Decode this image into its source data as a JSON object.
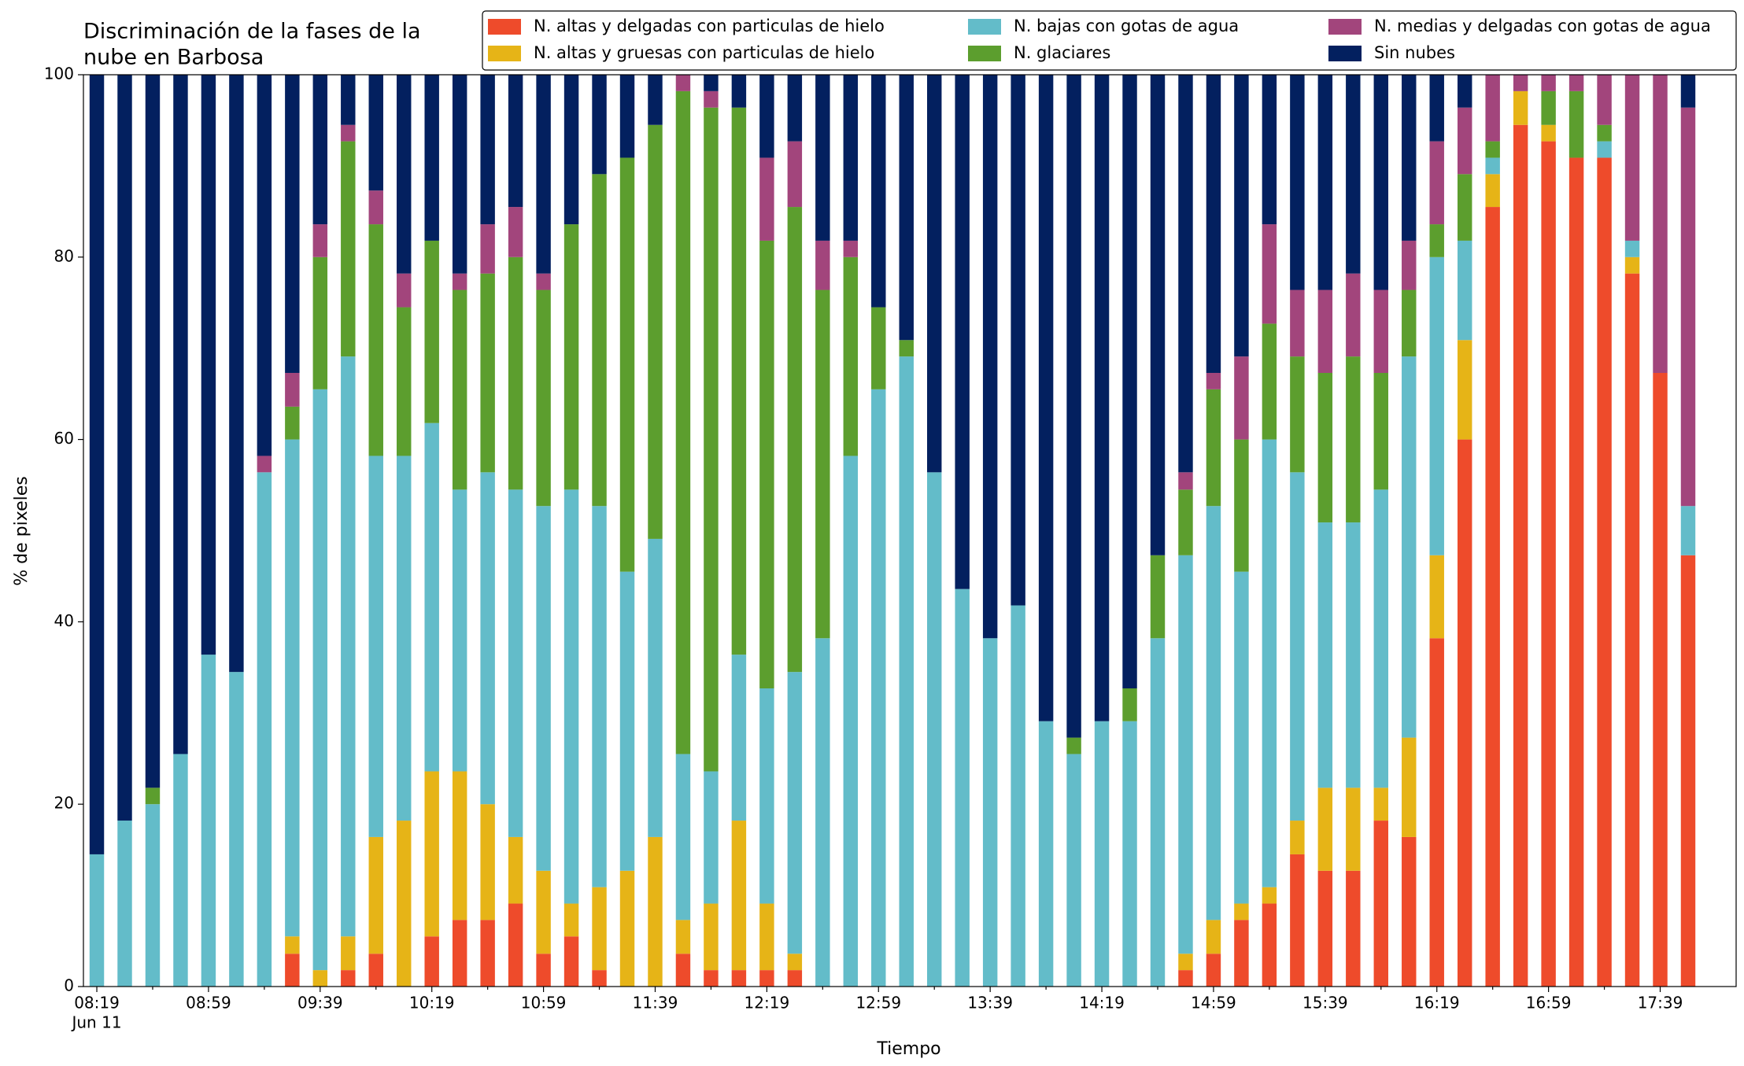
{
  "chart_data": {
    "type": "stacked_bar",
    "title": [
      "Discriminación de la fases de la",
      "nube en Barbosa"
    ],
    "x_label": "Tiempo",
    "y_label": "% de pixeles",
    "date_label": "Jun 11",
    "categories": [
      "08:19",
      null,
      null,
      null,
      "08:59",
      null,
      null,
      null,
      "09:39",
      null,
      null,
      null,
      "10:19",
      null,
      null,
      null,
      "10:59",
      null,
      null,
      null,
      "11:39",
      null,
      null,
      null,
      "12:19",
      null,
      null,
      null,
      "12:59",
      null,
      null,
      null,
      "13:39",
      null,
      null,
      null,
      "14:19",
      null,
      null,
      null,
      "14:59",
      null,
      null,
      null,
      "15:39",
      null,
      null,
      null,
      "16:19",
      null,
      null,
      null,
      "16:59",
      null,
      null,
      null,
      "17:39",
      null
    ],
    "ylim": [
      0,
      100
    ],
    "yticks": [
      0,
      20,
      40,
      60,
      80,
      100
    ],
    "grid": false,
    "legend": "upper right",
    "series": [
      {
        "name": "N. altas y delgadas con particulas de hielo",
        "color": "#ee4b2b",
        "values": [
          0,
          0,
          0,
          0,
          0,
          0,
          0,
          3.6,
          0,
          1.8,
          3.6,
          0,
          5.5,
          7.3,
          7.3,
          9.1,
          3.6,
          5.5,
          1.8,
          0,
          0,
          3.6,
          1.8,
          1.8,
          1.8,
          1.8,
          0,
          0,
          0,
          0,
          0,
          0,
          0,
          0,
          0,
          0,
          0,
          0,
          0,
          1.8,
          3.6,
          7.3,
          9.1,
          14.5,
          12.7,
          12.7,
          18.2,
          16.4,
          38.2,
          60,
          85.5,
          94.5,
          92.7,
          90.9,
          90.9,
          78.2,
          67.3,
          47.3
        ]
      },
      {
        "name": "N. altas y gruesas con particulas de hielo",
        "color": "#e6b417",
        "values": [
          0,
          0,
          0,
          0,
          0,
          0,
          0,
          1.9,
          1.8,
          3.7,
          12.8,
          18.2,
          18.1,
          16.3,
          12.7,
          7.3,
          9.1,
          3.6,
          9.1,
          12.7,
          16.4,
          3.7,
          7.3,
          16.4,
          7.3,
          1.8,
          0,
          0,
          0,
          0,
          0,
          0,
          0,
          0,
          0,
          0,
          0,
          0,
          0,
          1.8,
          3.7,
          1.8,
          1.8,
          3.7,
          9.1,
          9.1,
          3.6,
          10.9,
          9.1,
          10.9,
          3.6,
          3.7,
          1.8,
          0,
          0,
          1.8,
          0,
          0
        ]
      },
      {
        "name": "N. bajas con gotas de agua",
        "color": "#63bcc9",
        "values": [
          14.5,
          18.2,
          20,
          25.5,
          36.4,
          34.5,
          56.4,
          54.5,
          63.7,
          63.6,
          41.8,
          40,
          38.2,
          30.9,
          36.4,
          38.1,
          40,
          45.4,
          41.8,
          32.8,
          32.7,
          18.2,
          14.5,
          18.2,
          23.6,
          30.9,
          38.2,
          58.2,
          65.5,
          69.1,
          56.4,
          43.6,
          38.2,
          41.8,
          29.1,
          25.5,
          29.1,
          29.1,
          38.2,
          43.7,
          45.4,
          36.4,
          49.1,
          38.2,
          29.1,
          29.1,
          32.7,
          41.8,
          32.7,
          10.9,
          1.8,
          0,
          0,
          0,
          1.8,
          1.8,
          0,
          5.4
        ]
      },
      {
        "name": "N. glaciares",
        "color": "#5c9e2e",
        "values": [
          0,
          0,
          1.8,
          0,
          0,
          0,
          0,
          3.6,
          14.5,
          23.6,
          25.4,
          16.3,
          20,
          21.9,
          21.8,
          25.5,
          23.7,
          29.1,
          36.4,
          45.4,
          45.4,
          72.7,
          72.8,
          60,
          49.1,
          51,
          38.2,
          21.8,
          9,
          1.8,
          0,
          0,
          0,
          0,
          0,
          1.8,
          0,
          3.6,
          9.1,
          7.2,
          12.8,
          14.5,
          12.7,
          12.7,
          16.4,
          18.2,
          12.8,
          7.3,
          3.6,
          7.3,
          1.8,
          0,
          3.7,
          7.3,
          1.8,
          0,
          0,
          0
        ]
      },
      {
        "name": "N. medias y delgadas con gotas de agua",
        "color": "#a2457c",
        "values": [
          0,
          0,
          0,
          0,
          0,
          0,
          1.8,
          3.7,
          3.6,
          1.8,
          3.7,
          3.7,
          0,
          1.8,
          5.4,
          5.5,
          1.8,
          0,
          0,
          0,
          0,
          1.8,
          1.8,
          0,
          9.1,
          7.2,
          5.4,
          1.8,
          0,
          0,
          0,
          0,
          0,
          0,
          0,
          0,
          0,
          0,
          0,
          1.9,
          1.8,
          9.1,
          10.9,
          7.3,
          9.1,
          9.1,
          9.1,
          5.4,
          9.1,
          7.3,
          7.3,
          1.8,
          1.8,
          1.8,
          5.5,
          18.2,
          32.7,
          43.7
        ]
      },
      {
        "name": "Sin nubes",
        "color": "#03205f",
        "values": [
          85.5,
          81.8,
          78.2,
          74.5,
          63.6,
          65.5,
          41.8,
          32.7,
          16.4,
          5.5,
          12.7,
          21.8,
          18.2,
          21.8,
          16.4,
          14.5,
          21.8,
          16.4,
          10.9,
          9.1,
          5.5,
          0,
          1.8,
          3.6,
          9.1,
          7.3,
          18.2,
          18.2,
          25.5,
          29.1,
          43.6,
          56.4,
          61.8,
          58.2,
          70.9,
          72.7,
          70.9,
          67.3,
          52.7,
          43.6,
          32.7,
          30.9,
          16.4,
          23.6,
          23.6,
          21.8,
          23.6,
          18.2,
          7.3,
          3.6,
          0,
          0,
          0,
          0,
          0,
          0,
          0,
          3.6
        ]
      }
    ]
  }
}
